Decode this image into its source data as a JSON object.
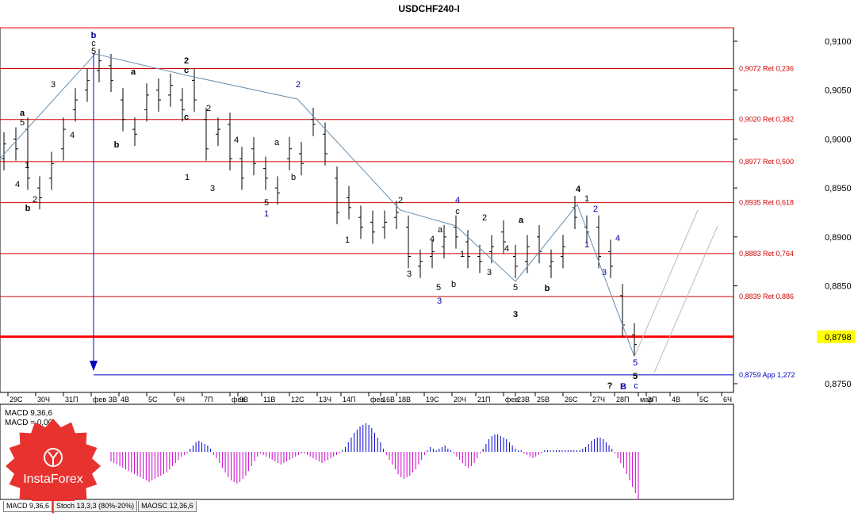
{
  "chart_data": {
    "type": "candlestick",
    "title": "USDCHF240-I",
    "symbol": "USDCHF",
    "timeframe": "H4",
    "price_axis": {
      "min": 0.875,
      "max": 0.91,
      "ticks": [
        "0,9100",
        "0,9050",
        "0,9000",
        "0,8950",
        "0,8900",
        "0,8850",
        "0,8750"
      ],
      "current_price": "0,8798"
    },
    "date_labels": [
      "29С",
      "30Ч",
      "31П",
      "фев",
      "3В",
      "4В",
      "5С",
      "6Ч",
      "7П",
      "фев",
      "9В",
      "11В",
      "12С",
      "13Ч",
      "14П",
      "фев",
      "16В",
      "18В",
      "19С",
      "20Ч",
      "21П",
      "фев",
      "23В",
      "25В",
      "26С",
      "27Ч",
      "28П",
      "мар",
      "3П",
      "4В",
      "5С",
      "6Ч"
    ],
    "retracements": [
      {
        "price": 0.9072,
        "label": "0,9072 Ret 0,236"
      },
      {
        "price": 0.902,
        "label": "0,9020 Ret 0,382"
      },
      {
        "price": 0.8977,
        "label": "0,8977 Ret 0,500"
      },
      {
        "price": 0.8935,
        "label": "0,8935 Ret 0,618"
      },
      {
        "price": 0.8883,
        "label": "0,8883 Ret 0,764"
      },
      {
        "price": 0.8839,
        "label": "0,8839 Ret 0,886"
      },
      {
        "price": 0.8759,
        "label": "0,8759 App 1,272"
      }
    ],
    "support_line": 0.8798,
    "wave_labels": [
      {
        "text": "b"
      },
      {
        "text": "c"
      },
      {
        "text": "5"
      },
      {
        "text": "2"
      },
      {
        "text": "c"
      },
      {
        "text": "a"
      },
      {
        "text": "5"
      },
      {
        "text": "3"
      },
      {
        "text": "a"
      },
      {
        "text": "4"
      },
      {
        "text": "2"
      },
      {
        "text": "c"
      },
      {
        "text": "b"
      },
      {
        "text": "1"
      },
      {
        "text": "2"
      },
      {
        "text": "4"
      },
      {
        "text": "1"
      },
      {
        "text": "b"
      },
      {
        "text": "2"
      },
      {
        "text": "4"
      },
      {
        "text": "3"
      },
      {
        "text": "5"
      },
      {
        "text": "1"
      },
      {
        "text": "a"
      },
      {
        "text": "b"
      },
      {
        "text": "1"
      },
      {
        "text": "2"
      },
      {
        "text": "4"
      },
      {
        "text": "c"
      },
      {
        "text": "a"
      },
      {
        "text": "4"
      },
      {
        "text": "1"
      },
      {
        "text": "3"
      },
      {
        "text": "5"
      },
      {
        "text": "b"
      },
      {
        "text": "3"
      },
      {
        "text": "2"
      },
      {
        "text": "a"
      },
      {
        "text": "4"
      },
      {
        "text": "1"
      },
      {
        "text": "3"
      },
      {
        "text": "5"
      },
      {
        "text": "3"
      },
      {
        "text": "b"
      },
      {
        "text": "4"
      },
      {
        "text": "2"
      },
      {
        "text": "1"
      },
      {
        "text": "4"
      },
      {
        "text": "3"
      },
      {
        "text": "5"
      },
      {
        "text": "5"
      },
      {
        "text": "c"
      },
      {
        "text": "?"
      },
      {
        "text": "B"
      }
    ],
    "indicator": {
      "label1": "MACD 9,36,6",
      "label2": "MACD = 0,00",
      "histogram": [
        -0.3,
        -0.35,
        -0.4,
        -0.45,
        -0.5,
        -0.55,
        -0.6,
        -0.65,
        -0.7,
        -0.75,
        -0.8,
        -0.85,
        -0.9,
        -0.95,
        -0.9,
        -0.85,
        -0.8,
        -0.75,
        -0.7,
        -0.65,
        -0.55,
        -0.45,
        -0.35,
        -0.25,
        -0.15,
        -0.1,
        -0.05,
        0.1,
        0.2,
        0.3,
        0.35,
        0.3,
        0.25,
        0.2,
        0.1,
        -0.1,
        -0.2,
        -0.35,
        -0.5,
        -0.65,
        -0.8,
        -0.9,
        -0.95,
        -1.0,
        -0.95,
        -0.85,
        -0.75,
        -0.6,
        -0.45,
        -0.3,
        -0.15,
        -0.05,
        -0.1,
        -0.15,
        -0.2,
        -0.25,
        -0.3,
        -0.35,
        -0.4,
        -0.35,
        -0.3,
        -0.25,
        -0.2,
        -0.15,
        -0.1,
        -0.05,
        -0.05,
        -0.1,
        -0.15,
        -0.2,
        -0.25,
        -0.3,
        -0.35,
        -0.3,
        -0.25,
        -0.2,
        -0.15,
        -0.1,
        -0.05,
        0.05,
        0.15,
        0.3,
        0.45,
        0.6,
        0.7,
        0.8,
        0.85,
        0.9,
        0.85,
        0.75,
        0.6,
        0.45,
        0.3,
        0.1,
        -0.1,
        -0.25,
        -0.4,
        -0.55,
        -0.7,
        -0.8,
        -0.85,
        -0.8,
        -0.75,
        -0.65,
        -0.55,
        -0.4,
        -0.25,
        -0.1,
        0.05,
        0.15,
        0.1,
        0.05,
        0.1,
        0.15,
        0.2,
        0.1,
        0.05,
        -0.05,
        -0.15,
        -0.25,
        -0.35,
        -0.45,
        -0.5,
        -0.45,
        -0.35,
        -0.2,
        -0.05,
        0.1,
        0.25,
        0.4,
        0.5,
        0.55,
        0.55,
        0.5,
        0.45,
        0.4,
        0.3,
        0.2,
        0.1,
        0.05,
        0.05,
        -0.05,
        -0.1,
        -0.15,
        -0.2,
        -0.15,
        -0.1,
        -0.05,
        0.05,
        0.05,
        0.05,
        0.05,
        0.05,
        0.05,
        0.05,
        0.05,
        0.05,
        0.05,
        0.05,
        0.05,
        0.05,
        0.1,
        0.15,
        0.25,
        0.35,
        0.4,
        0.45,
        0.45,
        0.4,
        0.3,
        0.2,
        0.1,
        -0.05,
        -0.2,
        -0.35,
        -0.5,
        -0.7,
        -0.9,
        -1.1,
        -1.3,
        -1.5
      ]
    }
  },
  "tabs": [
    "MACD 9,36,6",
    "Stoch 13,3,3 (80%-20%)",
    "MAOSC 12,36,6"
  ],
  "logo_text": "InstaForex",
  "colors": {
    "retracement": "#d00000",
    "support": "#ff0000",
    "target_line": "#0000c0",
    "macd_pos": "#0000cc",
    "macd_neg": "#cc00cc",
    "logo": "#e8322f"
  }
}
